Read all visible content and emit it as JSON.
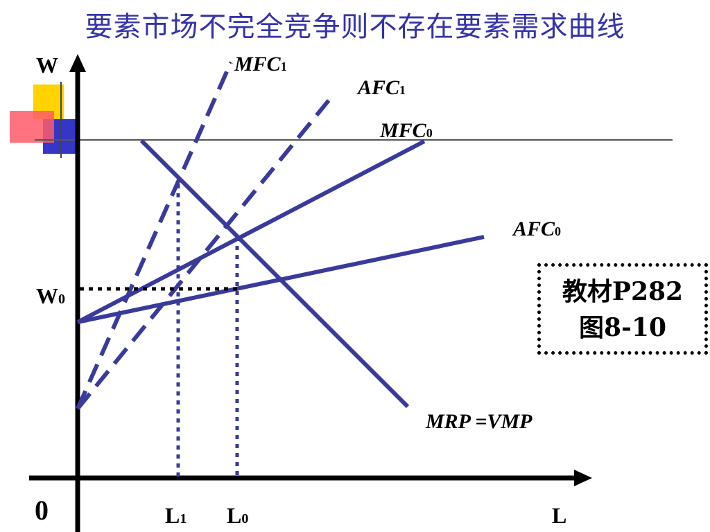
{
  "title": "要素市场不完全竞争则不存在要素需求曲线",
  "note": {
    "line1": "教材P282",
    "line2": "图8-10"
  },
  "axes": {
    "y_label": "W",
    "x_label": "L",
    "origin": "0"
  },
  "ticks": {
    "w0": {
      "main": "W",
      "sub": "0"
    },
    "l1": {
      "main": "L",
      "sub": "1"
    },
    "l0": {
      "main": "L",
      "sub": "0"
    }
  },
  "curves": {
    "mfc1": {
      "main": "MFC",
      "sub": "1",
      "prefix": "`"
    },
    "afc1": {
      "main": "AFC",
      "sub": "1"
    },
    "mfc0": {
      "main": "MFC",
      "sub": "0"
    },
    "afc0": {
      "main": "AFC",
      "sub": "0"
    },
    "mrp": {
      "text": "MRP =VMP"
    }
  },
  "colors": {
    "title": "#3333aa",
    "curve": "#3a3a9c",
    "axis": "#000000"
  }
}
